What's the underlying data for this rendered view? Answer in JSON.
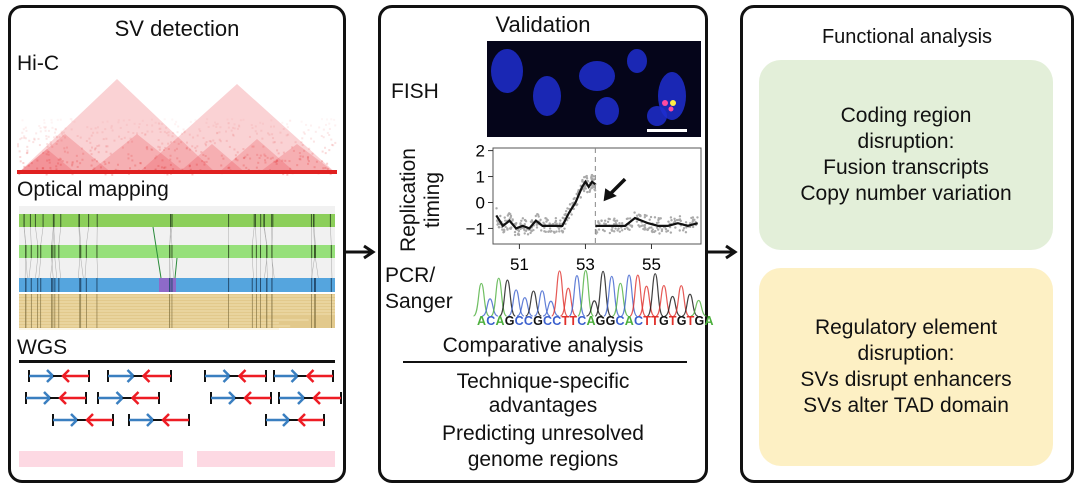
{
  "panel1": {
    "title": "SV detection",
    "hic_label": "Hi-C",
    "optical_label": "Optical mapping",
    "wgs_label": "WGS"
  },
  "panel2": {
    "title": "Validation",
    "fish_label": "FISH",
    "chart_ylabel": "Replication timing",
    "pcr_label_1": "PCR/",
    "pcr_label_2": "Sanger",
    "sequence": "ACAGCCGCCTTCAGGCACTTGTGTGA",
    "comparative_title": "Comparative analysis",
    "lines": [
      "Technique-specific",
      "advantages",
      "Predicting unresolved",
      "genome regions"
    ]
  },
  "panel3": {
    "title": "Functional analysis",
    "coding_box": {
      "lines": [
        "Coding region",
        "disruption:",
        "Fusion transcripts",
        "Copy number variation"
      ],
      "color": "#e3efd9"
    },
    "regulatory_box": {
      "lines": [
        "Regulatory element",
        "disruption:",
        "SVs disrupt enhancers",
        "SVs alter TAD domain"
      ],
      "color": "#fdf0c4"
    }
  },
  "colors": {
    "base_A": "#4caf3c",
    "base_C": "#3a5fcd",
    "base_G": "#111111",
    "base_T": "#e0302a",
    "forward_read": "#3a7fc0",
    "reverse_read": "#ee1c24"
  },
  "chart_data": {
    "type": "line",
    "ylabel": "Replication timing",
    "x_ticks": [
      51,
      53,
      55
    ],
    "y_ticks": [
      2,
      1,
      0,
      -1
    ],
    "xlim": [
      50.2,
      56.5
    ],
    "ylim": [
      -1.6,
      2.1
    ],
    "breakpoint_x": 53.3,
    "series": [
      {
        "x": [
          50.3,
          50.5,
          50.7,
          50.9,
          51.1,
          51.3,
          51.5,
          51.7,
          51.9,
          52.1,
          52.3,
          52.5,
          52.7,
          52.9,
          53.0,
          53.1,
          53.2,
          53.3
        ],
        "y": [
          -0.5,
          -0.9,
          -0.7,
          -1.0,
          -0.9,
          -1.0,
          -0.7,
          -0.9,
          -0.9,
          -0.9,
          -0.9,
          -0.4,
          0.0,
          0.6,
          0.8,
          0.6,
          0.8,
          0.7
        ]
      },
      {
        "x": [
          53.3,
          53.6,
          53.9,
          54.2,
          54.5,
          54.7,
          54.9,
          55.2,
          55.5,
          55.8,
          56.1,
          56.4
        ],
        "y": [
          -0.9,
          -0.9,
          -0.9,
          -0.9,
          -0.6,
          -0.7,
          -0.8,
          -0.9,
          -0.9,
          -0.8,
          -0.9,
          -0.8
        ]
      }
    ]
  }
}
